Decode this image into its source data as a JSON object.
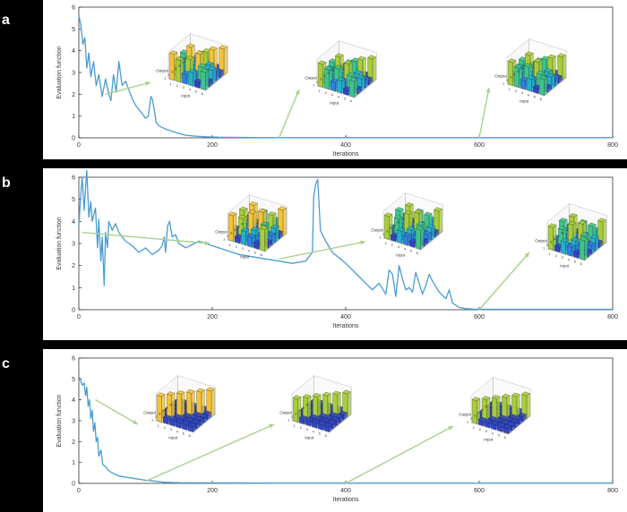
{
  "chart_data": [
    {
      "type": "line",
      "panel_label": "a",
      "xlabel": "Iterations",
      "ylabel": "Evaluation function",
      "xlim": [
        0,
        800
      ],
      "ylim": [
        0,
        6
      ],
      "xticks": [
        0,
        200,
        400,
        600,
        800
      ],
      "yticks": [
        0,
        1,
        2,
        3,
        4,
        5,
        6
      ],
      "color": "#4a9bd4",
      "series": [
        {
          "x": [
            0,
            3,
            6,
            9,
            12,
            15,
            18,
            22,
            26,
            30,
            35,
            40,
            45,
            48,
            52,
            56,
            60,
            65,
            70,
            75,
            80,
            85,
            90,
            95,
            100,
            104,
            108,
            110,
            113,
            116,
            120,
            130,
            140,
            150,
            160,
            175,
            190,
            210,
            240,
            280,
            320,
            400,
            500,
            600,
            700,
            800
          ],
          "y": [
            5.6,
            5.2,
            4.3,
            4.6,
            3.2,
            3.9,
            2.8,
            3.5,
            2.4,
            2.9,
            1.9,
            2.7,
            2.0,
            1.7,
            2.9,
            2.1,
            3.5,
            2.4,
            2.6,
            2.2,
            1.8,
            1.5,
            1.3,
            1.1,
            0.9,
            1.0,
            1.9,
            1.8,
            1.3,
            0.7,
            0.55,
            0.4,
            0.3,
            0.2,
            0.12,
            0.08,
            0.05,
            0.03,
            0.02,
            0.01,
            0.01,
            0.01,
            0.01,
            0.01,
            0.01,
            0.01
          ]
        }
      ],
      "insets": [
        {
          "xlabel": "Input",
          "ylabel": "Output",
          "tick_labels": [
            "1",
            "2",
            "3",
            "4",
            "5",
            "6"
          ]
        },
        {
          "xlabel": "Input",
          "ylabel": "Output",
          "tick_labels": [
            "1",
            "2",
            "3",
            "4",
            "5",
            "6"
          ]
        },
        {
          "xlabel": "Input",
          "ylabel": "Output",
          "tick_labels": [
            "1",
            "2",
            "3",
            "4",
            "5",
            "6"
          ]
        }
      ],
      "arrows": [
        {
          "from_x": 40,
          "from_y": 2.0,
          "inset": 0
        },
        {
          "from_x": 300,
          "from_y": 0.0,
          "inset": 1
        },
        {
          "from_x": 600,
          "from_y": 0.0,
          "inset": 2
        }
      ]
    },
    {
      "type": "line",
      "panel_label": "b",
      "xlabel": "Iterations",
      "ylabel": "Evaluation function",
      "xlim": [
        0,
        800
      ],
      "ylim": [
        0,
        6
      ],
      "xticks": [
        0,
        200,
        400,
        600,
        800
      ],
      "yticks": [
        0,
        1,
        2,
        3,
        4,
        5,
        6
      ],
      "color": "#4a9bd4",
      "series": [
        {
          "x": [
            0,
            3,
            5,
            8,
            10,
            12,
            15,
            18,
            20,
            25,
            28,
            30,
            33,
            35,
            38,
            40,
            43,
            45,
            50,
            55,
            60,
            70,
            80,
            90,
            100,
            110,
            120,
            125,
            128,
            130,
            133,
            136,
            140,
            145,
            150,
            160,
            180,
            200,
            220,
            240,
            260,
            280,
            300,
            320,
            340,
            350,
            352,
            355,
            358,
            360,
            362,
            365,
            370,
            380,
            400,
            420,
            440,
            450,
            460,
            465,
            470,
            475,
            480,
            485,
            490,
            495,
            500,
            505,
            510,
            515,
            520,
            525,
            530,
            540,
            550,
            555,
            560,
            570,
            580,
            590,
            600,
            650,
            700,
            750,
            800
          ],
          "y": [
            3.8,
            5.2,
            6.0,
            4.5,
            5.5,
            6.3,
            4.2,
            4.9,
            4.0,
            4.6,
            2.8,
            4.1,
            2.2,
            3.3,
            1.1,
            3.5,
            2.8,
            4.0,
            3.6,
            3.9,
            3.5,
            3.1,
            2.9,
            2.6,
            2.8,
            2.5,
            2.7,
            2.9,
            3.3,
            2.6,
            3.8,
            4.0,
            3.3,
            3.4,
            3.0,
            2.8,
            3.1,
            2.9,
            2.7,
            2.5,
            2.4,
            2.3,
            2.2,
            2.1,
            2.2,
            2.6,
            5.1,
            5.7,
            5.9,
            4.8,
            3.6,
            3.4,
            3.1,
            2.6,
            2.1,
            1.5,
            0.9,
            1.2,
            0.7,
            1.8,
            1.6,
            0.6,
            2.0,
            1.4,
            0.9,
            1.0,
            0.8,
            1.7,
            1.2,
            0.7,
            1.1,
            1.6,
            1.3,
            0.8,
            0.5,
            0.9,
            0.3,
            0.1,
            0.05,
            0.03,
            0.02,
            0.02,
            0.02,
            0.02,
            0.02
          ]
        }
      ],
      "insets": [
        {
          "xlabel": "Input",
          "ylabel": "Output",
          "tick_labels": [
            "1",
            "2",
            "3",
            "4",
            "5",
            "6"
          ]
        },
        {
          "xlabel": "Input",
          "ylabel": "Output",
          "tick_labels": [
            "1",
            "2",
            "3",
            "4",
            "5",
            "6"
          ]
        },
        {
          "xlabel": "Input",
          "ylabel": "Output",
          "tick_labels": [
            "1",
            "2",
            "3",
            "4",
            "5",
            "6"
          ]
        }
      ],
      "arrows": [
        {
          "from_x": 5,
          "from_y": 3.5,
          "inset": 0
        },
        {
          "from_x": 300,
          "from_y": 2.3,
          "inset": 1
        },
        {
          "from_x": 600,
          "from_y": 0.0,
          "inset": 2
        }
      ]
    },
    {
      "type": "line",
      "panel_label": "c",
      "xlabel": "Iterations",
      "ylabel": "Evaluation function",
      "xlim": [
        0,
        800
      ],
      "ylim": [
        0,
        6
      ],
      "xticks": [
        0,
        200,
        400,
        600,
        800
      ],
      "yticks": [
        0,
        1,
        2,
        3,
        4,
        5,
        6
      ],
      "color": "#4a9bd4",
      "series": [
        {
          "x": [
            0,
            2,
            5,
            8,
            10,
            12,
            14,
            16,
            18,
            20,
            22,
            24,
            26,
            28,
            30,
            33,
            36,
            40,
            45,
            50,
            60,
            70,
            80,
            90,
            100,
            110,
            120,
            130,
            150,
            200,
            300,
            400,
            500,
            600,
            700,
            800
          ],
          "y": [
            5.1,
            5.0,
            4.7,
            4.8,
            4.2,
            4.6,
            3.7,
            4.0,
            3.1,
            3.5,
            2.5,
            2.9,
            2.0,
            2.2,
            1.3,
            1.6,
            0.9,
            0.8,
            0.6,
            0.5,
            0.35,
            0.3,
            0.25,
            0.2,
            0.15,
            0.12,
            0.08,
            0.05,
            0.03,
            0.02,
            0.01,
            0.01,
            0.01,
            0.01,
            0.01,
            0.01
          ]
        }
      ],
      "insets": [
        {
          "xlabel": "Input",
          "ylabel": "Output",
          "tick_labels": [
            "1",
            "2",
            "3",
            "4",
            "5",
            "6"
          ]
        },
        {
          "xlabel": "Input",
          "ylabel": "Output",
          "tick_labels": [
            "1",
            "2",
            "3",
            "4",
            "5",
            "6"
          ]
        },
        {
          "xlabel": "Input",
          "ylabel": "Output",
          "tick_labels": [
            "1",
            "2",
            "3",
            "4",
            "5",
            "6"
          ]
        }
      ],
      "arrows": [
        {
          "from_x": 25,
          "from_y": 4.0,
          "inset": 0
        },
        {
          "from_x": 100,
          "from_y": 0.1,
          "inset": 1
        },
        {
          "from_x": 400,
          "from_y": 0.0,
          "inset": 2
        }
      ]
    }
  ]
}
